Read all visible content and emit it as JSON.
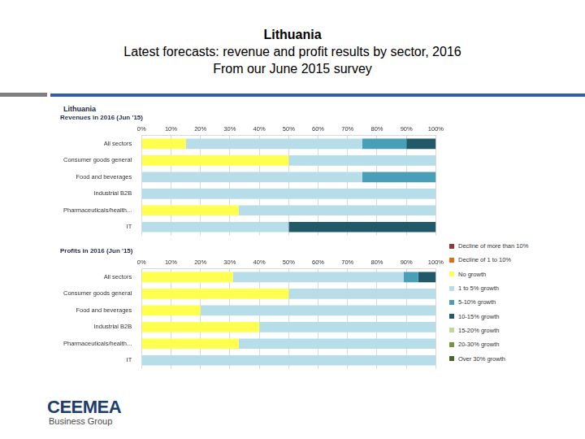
{
  "slide": {
    "title": [
      "Lithuania",
      "Latest forecasts: revenue and profit results by sector, 2016",
      "From our June 2015 survey"
    ],
    "panel_title": "Lithuania",
    "logo": {
      "name": "CEEMEA",
      "tagline": "Business Group"
    }
  },
  "chart_data": [
    {
      "type": "bar",
      "title": "Revenues in 2016 (Jun '15)",
      "orientation": "horizontal",
      "stacked": true,
      "grid": true,
      "legend": "right",
      "categories": [
        "All sectors",
        "Consumer goods general",
        "Food and beverages",
        "Industrial B2B",
        "Pharmaceuticals/health...",
        "IT"
      ],
      "xlim": [
        0,
        100
      ],
      "xticks": [
        {
          "value": 0,
          "label": "0%"
        },
        {
          "value": 10,
          "label": "10%"
        },
        {
          "value": 20,
          "label": "20%"
        },
        {
          "value": 30,
          "label": "30%"
        },
        {
          "value": 40,
          "label": "40%"
        },
        {
          "value": 50,
          "label": "50%"
        },
        {
          "value": 60,
          "label": "60%"
        },
        {
          "value": 70,
          "label": "70%"
        },
        {
          "value": 80,
          "label": "80%"
        },
        {
          "value": 90,
          "label": "90%"
        },
        {
          "value": 100,
          "label": "100%"
        }
      ],
      "series": [
        {
          "name": "Decline of more than 10%",
          "color": "#953735",
          "values": [
            0,
            0,
            0,
            0,
            0,
            0
          ]
        },
        {
          "name": "Decline of 1 to 10%",
          "color": "#e46c0a",
          "values": [
            0,
            0,
            0,
            0,
            0,
            0
          ]
        },
        {
          "name": "No growth",
          "color": "#ffff4f",
          "values": [
            15,
            50,
            0,
            0,
            33,
            0
          ]
        },
        {
          "name": "1 to 5% growth",
          "color": "#b7dde8",
          "values": [
            60,
            50,
            75,
            100,
            67,
            50
          ]
        },
        {
          "name": "5-10% growth",
          "color": "#4a9fb8",
          "values": [
            15,
            0,
            25,
            0,
            0,
            0
          ]
        },
        {
          "name": "10-15% growth",
          "color": "#215968",
          "values": [
            10,
            0,
            0,
            0,
            0,
            50
          ]
        },
        {
          "name": "15-20% growth",
          "color": "#c3d69b",
          "values": [
            0,
            0,
            0,
            0,
            0,
            0
          ]
        },
        {
          "name": "20-30% growth",
          "color": "#77933c",
          "values": [
            0,
            0,
            0,
            0,
            0,
            0
          ]
        },
        {
          "name": "Over 30% growth",
          "color": "#4f6228",
          "values": [
            0,
            0,
            0,
            0,
            0,
            0
          ]
        }
      ]
    },
    {
      "type": "bar",
      "title": "Profits in 2016 (Jun '15)",
      "orientation": "horizontal",
      "stacked": true,
      "grid": true,
      "legend": "right",
      "categories": [
        "All sectors",
        "Consumer goods general",
        "Food and beverages",
        "Industrial B2B",
        "Pharmaceuticals/health...",
        "IT"
      ],
      "xlim": [
        0,
        100
      ],
      "xticks": [
        {
          "value": 0,
          "label": "0%"
        },
        {
          "value": 10,
          "label": "10%"
        },
        {
          "value": 20,
          "label": "20%"
        },
        {
          "value": 30,
          "label": "30%"
        },
        {
          "value": 40,
          "label": "40%"
        },
        {
          "value": 50,
          "label": "50%"
        },
        {
          "value": 60,
          "label": "60%"
        },
        {
          "value": 70,
          "label": "70%"
        },
        {
          "value": 80,
          "label": "80%"
        },
        {
          "value": 90,
          "label": "90%"
        },
        {
          "value": 100,
          "label": "100%"
        }
      ],
      "series": [
        {
          "name": "Decline of more than 10%",
          "color": "#953735",
          "values": [
            0,
            0,
            0,
            0,
            0,
            0
          ]
        },
        {
          "name": "Decline of 1 to 10%",
          "color": "#e46c0a",
          "values": [
            0,
            0,
            0,
            0,
            0,
            0
          ]
        },
        {
          "name": "No growth",
          "color": "#ffff4f",
          "values": [
            31,
            50,
            20,
            40,
            33,
            0
          ]
        },
        {
          "name": "1 to 5% growth",
          "color": "#b7dde8",
          "values": [
            58,
            50,
            80,
            60,
            67,
            100
          ]
        },
        {
          "name": "5-10% growth",
          "color": "#4a9fb8",
          "values": [
            5,
            0,
            0,
            0,
            0,
            0
          ]
        },
        {
          "name": "10-15% growth",
          "color": "#215968",
          "values": [
            6,
            0,
            0,
            0,
            0,
            0
          ]
        },
        {
          "name": "15-20% growth",
          "color": "#c3d69b",
          "values": [
            0,
            0,
            0,
            0,
            0,
            0
          ]
        },
        {
          "name": "20-30% growth",
          "color": "#77933c",
          "values": [
            0,
            0,
            0,
            0,
            0,
            0
          ]
        },
        {
          "name": "Over 30% growth",
          "color": "#4f6228",
          "values": [
            0,
            0,
            0,
            0,
            0,
            0
          ]
        }
      ]
    }
  ]
}
